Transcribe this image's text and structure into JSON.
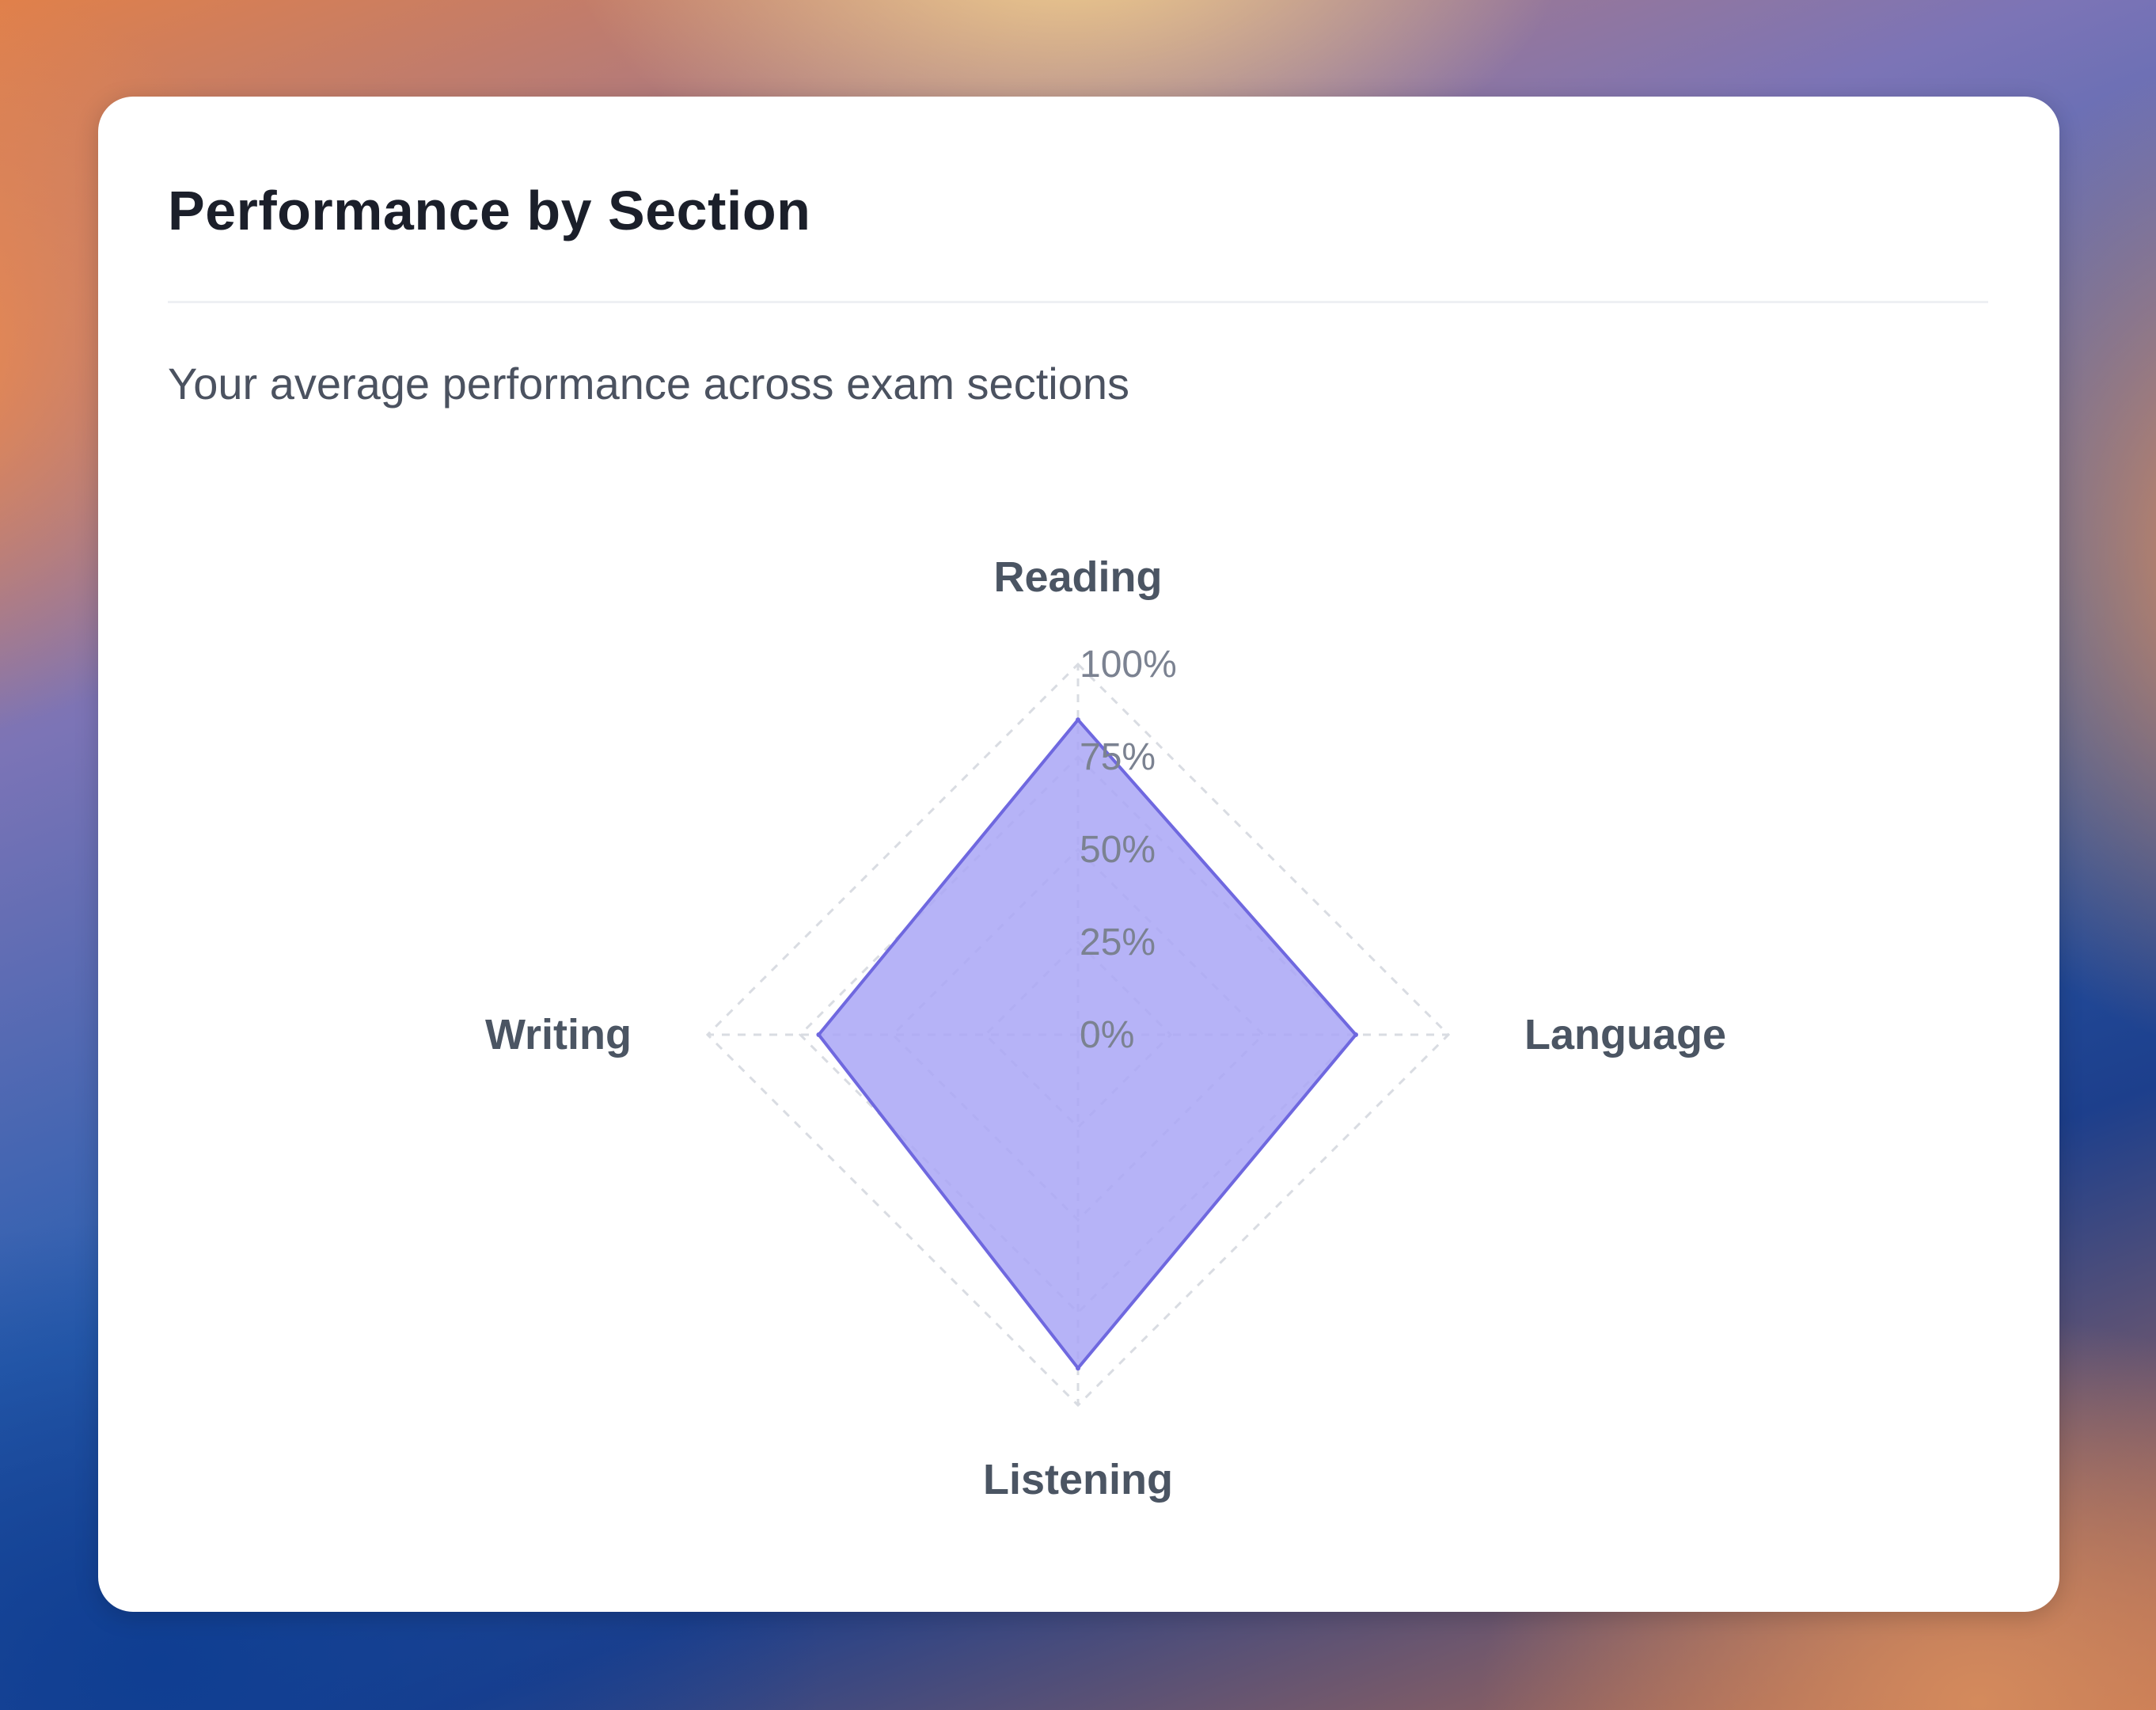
{
  "card": {
    "title": "Performance by Section",
    "subtitle": "Your average performance across exam sections"
  },
  "colors": {
    "fill": "#a9a6f6",
    "stroke": "#6f68df",
    "grid": "#d9dce2"
  },
  "chart_data": {
    "type": "radar",
    "title": "",
    "categories": [
      "Reading",
      "Language",
      "Listening",
      "Writing"
    ],
    "series": [
      {
        "values": [
          85,
          75,
          90,
          70
        ]
      }
    ],
    "range": [
      0,
      100
    ],
    "ticks": [
      "0%",
      "25%",
      "50%",
      "75%",
      "100%"
    ],
    "tick_values": [
      0,
      25,
      50,
      75,
      100
    ],
    "grid": true,
    "legend": "none"
  }
}
